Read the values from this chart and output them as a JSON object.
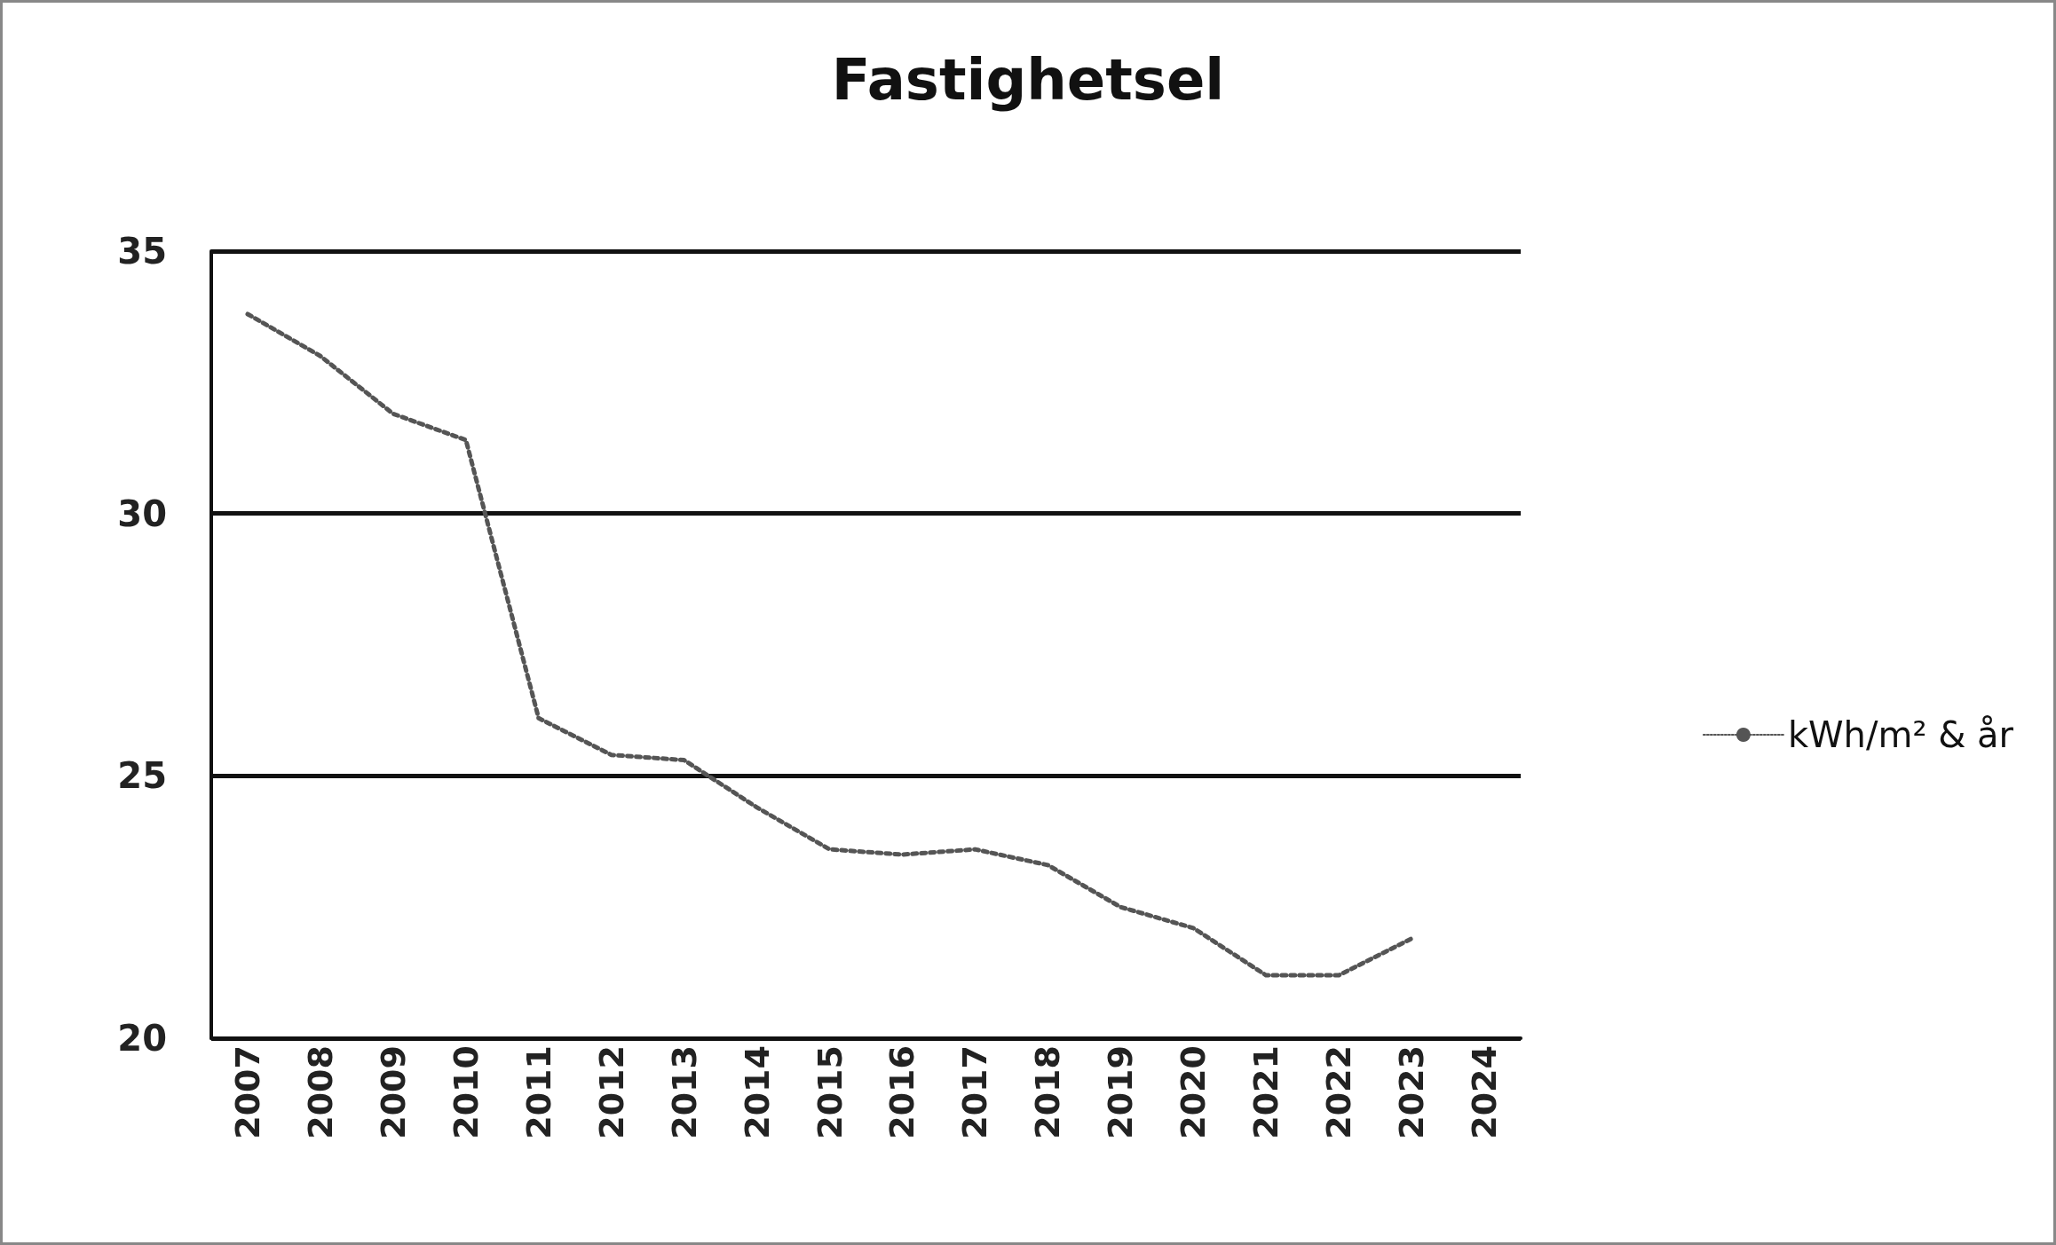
{
  "chart_data": {
    "type": "line",
    "title": "Fastighetsel",
    "categories": [
      "2007",
      "2008",
      "2009",
      "2010",
      "2011",
      "2012",
      "2013",
      "2014",
      "2015",
      "2016",
      "2017",
      "2018",
      "2019",
      "2020",
      "2021",
      "2022",
      "2023",
      "2024"
    ],
    "series": [
      {
        "name": "kWh/m² & år",
        "color": "#555555",
        "values": [
          33.8,
          33.0,
          31.9,
          31.4,
          26.1,
          25.4,
          25.3,
          24.4,
          23.6,
          23.5,
          23.6,
          23.3,
          22.5,
          22.1,
          21.2,
          21.2,
          21.9,
          null
        ]
      }
    ],
    "ylim": [
      20,
      35
    ],
    "yticks": [
      20,
      25,
      30,
      35
    ],
    "grid": "y",
    "legend": "right",
    "marker": "none",
    "line_style": "dotted"
  }
}
